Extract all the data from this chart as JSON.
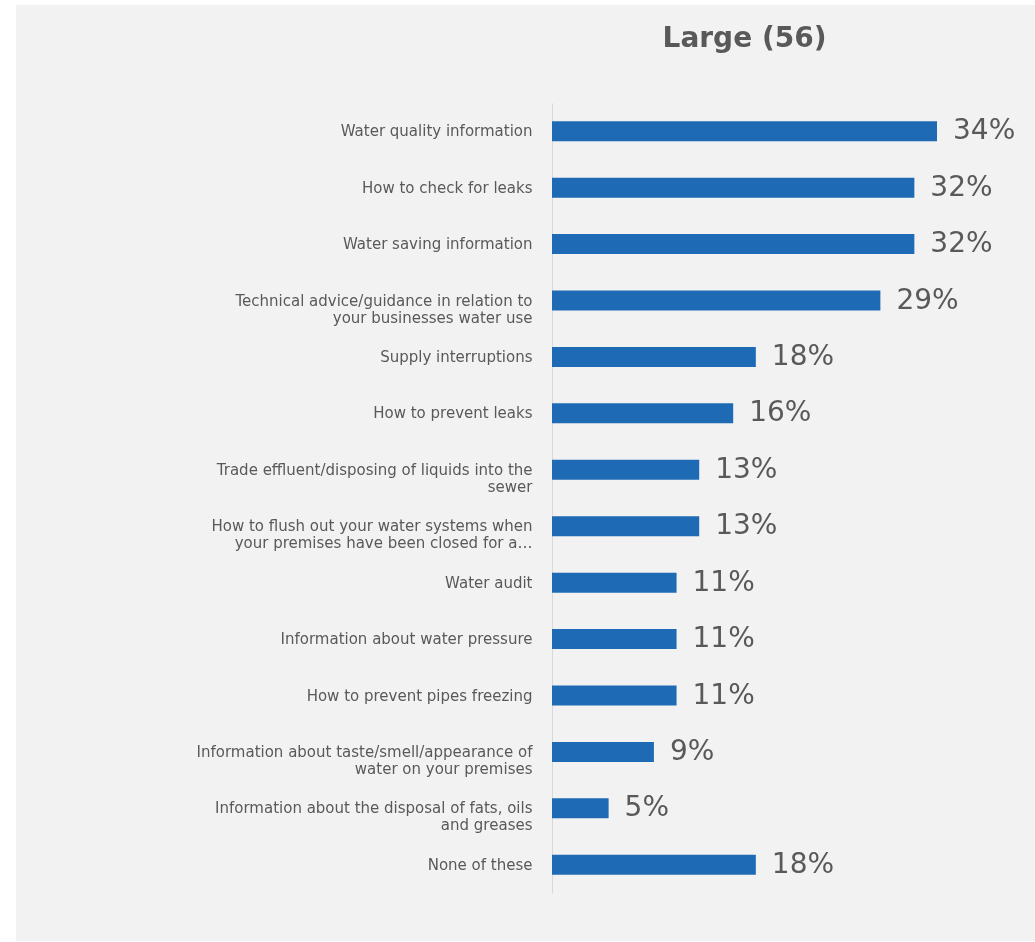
{
  "chart_data": {
    "type": "bar",
    "orientation": "horizontal",
    "title": "Large (56)",
    "categories": [
      "Water quality information",
      "How to check for leaks",
      "Water saving information",
      "Technical advice/guidance in relation to your businesses water use",
      "Supply interruptions",
      "How to prevent leaks",
      "Trade effluent/disposing of liquids into the sewer",
      "How to flush out your water systems when your premises have been closed for a…",
      "Water audit",
      "Information about water pressure",
      "How to prevent pipes freezing",
      "Information about taste/smell/appearance of water on your premises",
      "Information about the disposal of fats, oils and greases",
      "None of these"
    ],
    "values": [
      34,
      32,
      32,
      29,
      18,
      16,
      13,
      13,
      11,
      11,
      11,
      9,
      5,
      18
    ],
    "value_labels": [
      "34%",
      "32%",
      "32%",
      "29%",
      "18%",
      "16%",
      "13%",
      "13%",
      "11%",
      "11%",
      "11%",
      "9%",
      "5%",
      "18%"
    ],
    "color": "#1f6ab5",
    "grid": false
  }
}
